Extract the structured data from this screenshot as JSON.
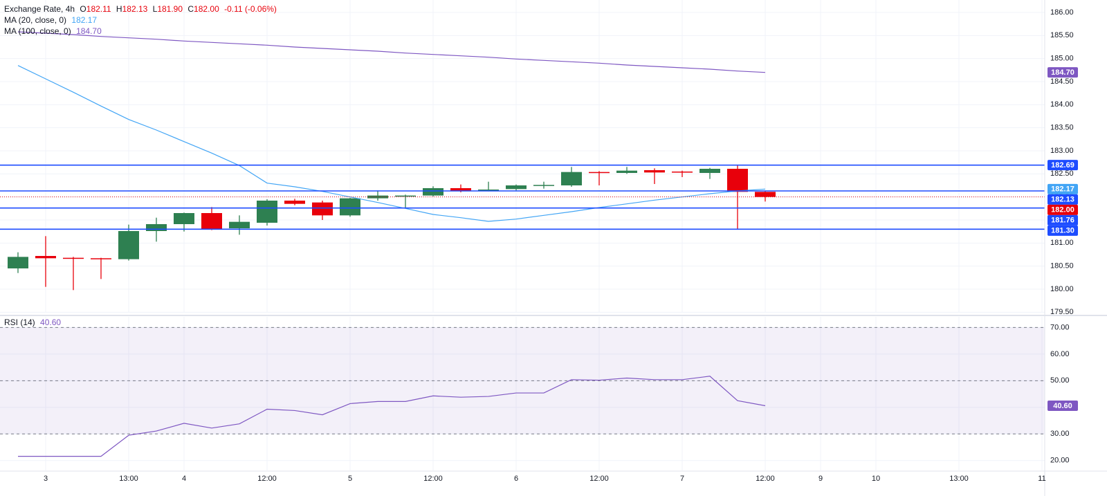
{
  "chart_data": [
    {
      "type": "candlestick",
      "title": "Exchange Rate, 4h",
      "ohlc_legend": [
        {
          "key": "O",
          "text": "182.11"
        },
        {
          "key": "H",
          "text": "182.13"
        },
        {
          "key": "L",
          "text": "181.90"
        },
        {
          "key": "C",
          "text": "182.00"
        }
      ],
      "change": "-0.11 (-0.06%)",
      "categories": [
        null,
        "3",
        null,
        null,
        "13:00",
        null,
        "4",
        null,
        null,
        "12:00",
        null,
        null,
        "5",
        null,
        null,
        "12:00",
        null,
        null,
        "6",
        null,
        null,
        "12:00",
        null,
        null,
        "7",
        null,
        null,
        "12:00",
        null,
        "9",
        null,
        "10",
        null,
        null,
        "13:00",
        null,
        null,
        "11"
      ],
      "open": [
        180.45,
        180.72,
        180.68,
        180.67,
        180.65,
        181.26,
        181.41,
        181.65,
        181.32,
        181.44,
        181.92,
        181.88,
        181.6,
        181.97,
        182.02,
        182.03,
        182.19,
        182.13,
        182.17,
        182.24,
        182.25,
        182.54,
        182.52,
        182.58,
        182.55,
        182.52,
        182.61,
        182.11,
        null,
        null,
        null,
        null,
        null,
        null,
        null,
        null,
        null,
        null
      ],
      "high": [
        180.8,
        181.15,
        180.7,
        180.68,
        181.4,
        181.55,
        181.66,
        181.78,
        181.6,
        181.95,
        181.96,
        181.92,
        181.98,
        182.14,
        182.05,
        182.23,
        182.27,
        182.33,
        182.27,
        182.33,
        182.65,
        182.56,
        182.65,
        182.62,
        182.57,
        182.63,
        182.69,
        182.13,
        null,
        null,
        null,
        null,
        null,
        null,
        null,
        null,
        null,
        null
      ],
      "low": [
        180.35,
        180.05,
        179.98,
        180.22,
        180.62,
        181.03,
        181.25,
        181.28,
        181.18,
        181.38,
        181.82,
        181.5,
        181.57,
        181.92,
        181.76,
        182.01,
        182.1,
        182.12,
        182.14,
        182.18,
        182.22,
        182.25,
        182.5,
        182.28,
        182.43,
        182.39,
        181.3,
        181.9,
        null,
        null,
        null,
        null,
        null,
        null,
        null,
        null,
        null,
        null
      ],
      "close": [
        180.7,
        180.67,
        180.66,
        180.66,
        181.26,
        181.41,
        181.65,
        181.3,
        181.46,
        181.92,
        181.85,
        181.6,
        181.97,
        182.03,
        182.03,
        182.19,
        182.13,
        182.16,
        182.25,
        182.26,
        182.54,
        182.52,
        182.57,
        182.53,
        182.53,
        182.61,
        182.11,
        182.0,
        null,
        null,
        null,
        null,
        null,
        null,
        null,
        null,
        null,
        null
      ],
      "up_color": "#2e8051",
      "down_color": "#e8000b",
      "overlays": [
        {
          "name": "MA (20, close, 0)",
          "color": "#42a5f5",
          "last_label": "182.17",
          "values": [
            184.85,
            184.56,
            184.27,
            183.97,
            183.68,
            183.45,
            183.2,
            182.95,
            182.68,
            182.3,
            182.22,
            182.12,
            182.0,
            181.88,
            181.75,
            181.62,
            181.55,
            181.47,
            181.52,
            181.6,
            181.68,
            181.77,
            181.85,
            181.93,
            182.0,
            182.07,
            182.13,
            182.17,
            null,
            null,
            null,
            null,
            null,
            null,
            null,
            null,
            null,
            null
          ]
        },
        {
          "name": "MA (100, close, 0)",
          "color": "#7e57c2",
          "last_label": "184.70",
          "values": [
            185.58,
            185.55,
            185.52,
            185.48,
            185.45,
            185.42,
            185.38,
            185.35,
            185.32,
            185.29,
            185.25,
            185.22,
            185.19,
            185.16,
            185.12,
            185.09,
            185.06,
            185.03,
            184.99,
            184.96,
            184.93,
            184.9,
            184.86,
            184.83,
            184.8,
            184.77,
            184.73,
            184.7,
            null,
            null,
            null,
            null,
            null,
            null,
            null,
            null,
            null,
            null
          ]
        }
      ],
      "hlines": [
        {
          "value": 182.69,
          "label": "182.69",
          "color": "#1d4cff",
          "style": "solid"
        },
        {
          "value": 182.13,
          "label": "182.13",
          "color": "#1d4cff",
          "style": "solid"
        },
        {
          "value": 181.76,
          "label": "181.76",
          "color": "#1d4cff",
          "style": "solid"
        },
        {
          "value": 181.3,
          "label": "181.30",
          "color": "#1d4cff",
          "style": "solid"
        },
        {
          "value": 182.0,
          "label": "182.00",
          "color": "#e8000b",
          "style": "dotted"
        }
      ],
      "ylim": [
        179.49,
        186.27
      ],
      "yticks": [
        {
          "value": 179.5,
          "label": "179.50"
        },
        {
          "value": 180,
          "label": "180.00"
        },
        {
          "value": 180.5,
          "label": "180.50"
        },
        {
          "value": 181,
          "label": "181.00"
        },
        {
          "value": 181.5,
          "label": "181.50"
        },
        {
          "value": 182,
          "label": "182.00"
        },
        {
          "value": 182.5,
          "label": "182.50"
        },
        {
          "value": 183,
          "label": "183.00"
        },
        {
          "value": 183.5,
          "label": "183.50"
        },
        {
          "value": 184,
          "label": "184.00"
        },
        {
          "value": 184.5,
          "label": "184.50"
        },
        {
          "value": 185,
          "label": "185.00"
        },
        {
          "value": 185.5,
          "label": "185.50"
        },
        {
          "value": 186,
          "label": "186.00"
        }
      ],
      "grid": true
    },
    {
      "type": "line",
      "title": "RSI (14)",
      "series": [
        {
          "name": "RSI (14)",
          "color": "#7e57c2",
          "last_label": "40.60",
          "values": [
            21.6,
            21.6,
            21.6,
            21.6,
            29.5,
            31.1,
            34.0,
            32.2,
            33.8,
            39.3,
            38.8,
            37.2,
            41.4,
            42.2,
            42.2,
            44.3,
            43.8,
            44.1,
            45.4,
            45.4,
            50.4,
            50.2,
            51.0,
            50.4,
            50.4,
            51.7,
            42.5,
            40.6,
            null,
            null,
            null,
            null,
            null,
            null,
            null,
            null,
            null,
            null
          ]
        }
      ],
      "band": [
        30,
        70
      ],
      "band_color": "#7e57c2",
      "levels": [
        70,
        50,
        30
      ],
      "ylim": [
        16.3,
        74.0
      ],
      "yticks": [
        {
          "value": 20,
          "label": "20.00"
        },
        {
          "value": 30,
          "label": "30.00"
        },
        {
          "value": 40,
          "label": "40.00"
        },
        {
          "value": 50,
          "label": "50.00"
        },
        {
          "value": 60,
          "label": "60.00"
        },
        {
          "value": 70,
          "label": "70.00"
        }
      ],
      "grid": true
    }
  ]
}
